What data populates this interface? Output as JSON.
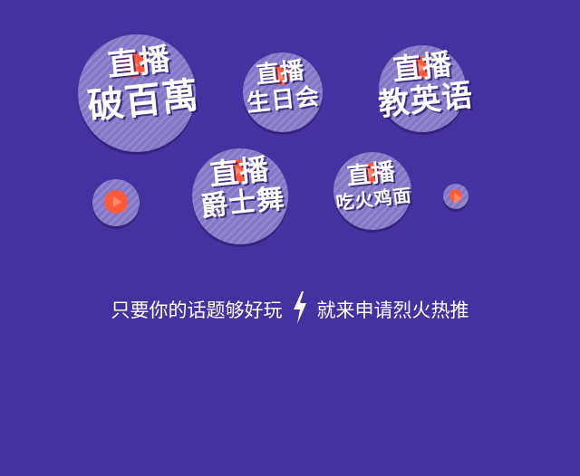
{
  "bubbles": [
    {
      "line1": "直播",
      "line2": "破百萬"
    },
    {
      "line1": "直播",
      "line2": "生日会"
    },
    {
      "line1": "直播",
      "line2": "教英语"
    },
    {
      "line1": "直播",
      "line2": "爵士舞"
    },
    {
      "line1": "直播",
      "line2": "吃火鸡面"
    }
  ],
  "slogan": {
    "part1": "只要你的话题够好玩",
    "part2": "就来申请烈火热推"
  },
  "colors": {
    "background": "#45319f",
    "bubble": "#7d6fc4",
    "accent": "#ff5a3c",
    "text": "#ffffff"
  },
  "icons": {
    "play": "play-icon",
    "bolt": "lightning-bolt-icon"
  }
}
